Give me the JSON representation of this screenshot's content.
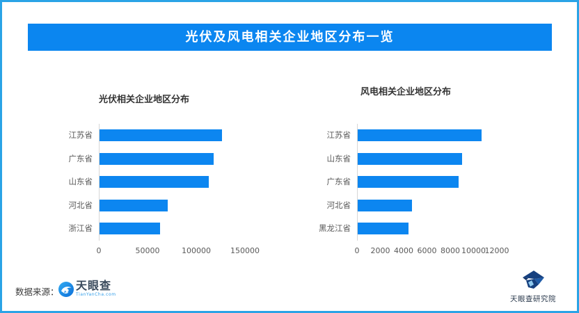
{
  "banner": {
    "title": "光伏及风电相关企业地区分布一览",
    "bg_color": "#0B86F0",
    "text_color": "#FFFFFF"
  },
  "colors": {
    "frame_border": "#2AA3E6",
    "bar_blue": "#0C86F0",
    "axis_line": "#D6D6D6",
    "label_gray": "#595959"
  },
  "chart_data": [
    {
      "type": "bar",
      "orientation": "horizontal",
      "title": "光伏相关企业地区分布",
      "categories": [
        "江苏省",
        "广东省",
        "山东省",
        "河北省",
        "浙江省"
      ],
      "values": [
        126000,
        118000,
        113000,
        70000,
        62500
      ],
      "xlim": [
        0,
        150000
      ],
      "xticks": [
        0,
        50000,
        100000,
        150000
      ],
      "bar_color": "#0C86F0",
      "grid": false,
      "legend": false
    },
    {
      "type": "bar",
      "orientation": "horizontal",
      "title": "风电相关企业地区分布",
      "categories": [
        "江苏省",
        "山东省",
        "广东省",
        "河北省",
        "黑龙江省"
      ],
      "values": [
        10700,
        9000,
        8700,
        4650,
        4350
      ],
      "xlim": [
        0,
        12000
      ],
      "xticks": [
        0,
        2000,
        4000,
        6000,
        8000,
        10000,
        12000
      ],
      "bar_color": "#0C86F0",
      "grid": false,
      "legend": false
    }
  ],
  "footer": {
    "source_label": "数据来源：",
    "tianyancha_name": "天眼查",
    "tianyancha_url": "TianYanCha.com",
    "research_institute": "天眼查研究院"
  }
}
